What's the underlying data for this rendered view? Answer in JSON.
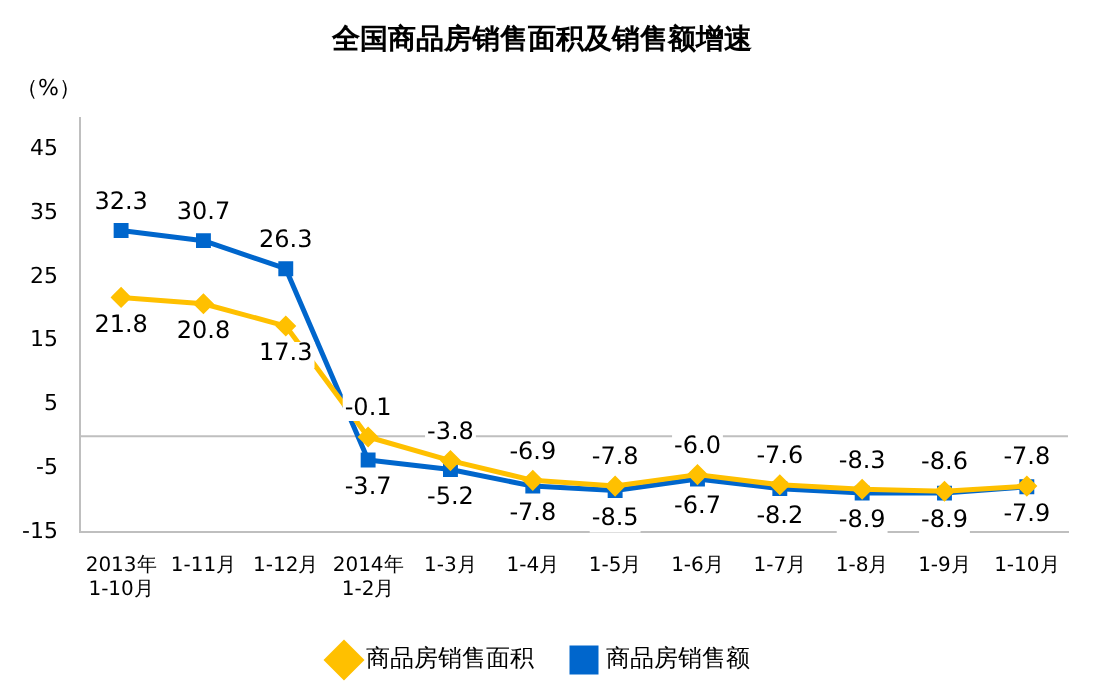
{
  "chart_data": {
    "type": "line",
    "title": "全国商品房销售面积及销售额增速",
    "ylabel": "（%）",
    "categories": [
      "2013年\n1-10月",
      "1-11月",
      "1-12月",
      "2014年\n1-2月",
      "1-3月",
      "1-4月",
      "1-5月",
      "1-6月",
      "1-7月",
      "1-8月",
      "1-9月",
      "1-10月"
    ],
    "series": [
      {
        "name": "商品房销售面积",
        "color": "#ffc000",
        "marker": "diamond",
        "values": [
          21.8,
          20.8,
          17.3,
          -0.1,
          -3.8,
          -6.9,
          -7.8,
          -6.0,
          -7.6,
          -8.3,
          -8.6,
          -7.8
        ],
        "value_labels": [
          "21.8",
          "20.8",
          "17.3",
          "-0.1",
          "-3.8",
          "-6.9",
          "-7.8",
          "-6.0",
          "-7.6",
          "-8.3",
          "-8.6",
          "-7.8"
        ]
      },
      {
        "name": "商品房销售额",
        "color": "#0066cc",
        "marker": "square",
        "values": [
          32.3,
          30.7,
          26.3,
          -3.7,
          -5.2,
          -7.8,
          -8.5,
          -6.7,
          -8.2,
          -8.9,
          -8.9,
          -7.9
        ],
        "value_labels": [
          "32.3",
          "30.7",
          "26.3",
          "-3.7",
          "-5.2",
          "-7.8",
          "-8.5",
          "-6.7",
          "-8.2",
          "-8.9",
          "-8.9",
          "-7.9"
        ]
      }
    ],
    "ylim": [
      -15,
      50
    ],
    "yticks": [
      -15,
      -5,
      5,
      15,
      25,
      35,
      45
    ],
    "ref_lines": [
      {
        "axis": "y",
        "value": 0,
        "color": "#bfbfbf"
      }
    ],
    "grid": false,
    "legend": "bottom",
    "line_style": "solid"
  }
}
